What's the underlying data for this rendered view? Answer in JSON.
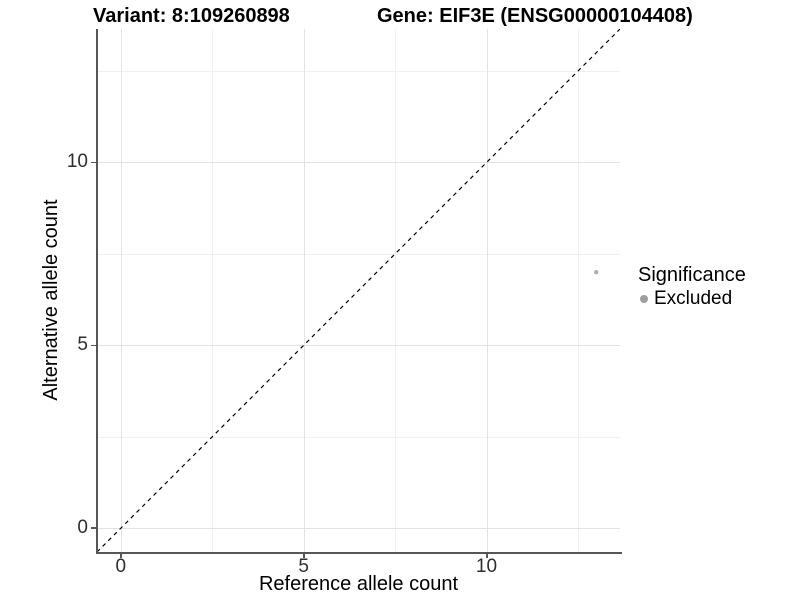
{
  "header": {
    "variant_title": "Variant: 8:109260898",
    "gene_title": "Gene: EIF3E (ENSG00000104408)"
  },
  "axes": {
    "x_label": "Reference allele count",
    "y_label": "Alternative allele count"
  },
  "legend": {
    "title": "Significance",
    "items": [
      {
        "label": "Excluded",
        "color": "#9e9e9e"
      }
    ]
  },
  "chart_data": {
    "type": "scatter",
    "title": "Variant: 8:109260898 — Gene: EIF3E (ENSG00000104408)",
    "xlabel": "Reference allele count",
    "ylabel": "Alternative allele count",
    "xlim": [
      -0.65,
      13.65
    ],
    "ylim": [
      -0.65,
      13.65
    ],
    "x_ticks": [
      0,
      5,
      10
    ],
    "y_ticks": [
      0,
      5,
      10
    ],
    "x_minor_ticks": [
      2.5,
      7.5,
      12.5
    ],
    "y_minor_ticks": [
      2.5,
      7.5,
      12.5
    ],
    "grid": true,
    "legend_position": "right",
    "series": [
      {
        "name": "Excluded",
        "marker": "circle",
        "color": "#aeaeae",
        "points": [
          {
            "x": 13,
            "y": 7
          }
        ]
      }
    ],
    "reference_line": {
      "type": "identity",
      "slope": 1,
      "intercept": 0,
      "style": "dashed",
      "color": "#000000"
    }
  }
}
